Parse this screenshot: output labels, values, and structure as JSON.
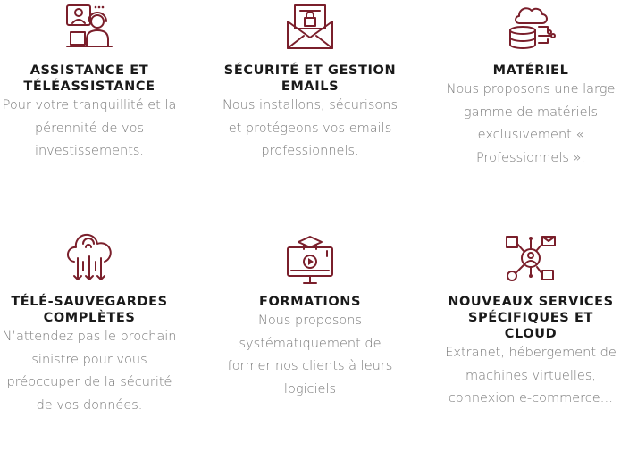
{
  "services": [
    {
      "title": "ASSISTANCE ET TÉLÉASSISTANCE",
      "description": "Pour votre tranquillité et la pérennité de vos investissements.",
      "icon": "support-agent-icon"
    },
    {
      "title": "SÉCURITÉ ET GESTION EMAILS",
      "description": "Nous installons, sécurisons et protégeons vos emails professionnels.",
      "icon": "secure-email-icon"
    },
    {
      "title": "MATÉRIEL",
      "description": "Nous proposons une large gamme de matériels exclusivement « Professionnels ».",
      "icon": "database-cloud-icon"
    },
    {
      "title": "TÉLÉ-SAUVEGARDES COMPLÈTES",
      "description": "N’attendez pas le prochain sinistre pour vous préoccuper de la sécurité de vos données.",
      "icon": "cloud-backup-icon"
    },
    {
      "title": "FORMATIONS",
      "description": "Nous proposons systématiquement de former nos clients à leurs logiciels",
      "icon": "training-monitor-icon"
    },
    {
      "title": "NOUVEAUX SERVICES SPÉCIFIQUES ET CLOUD",
      "description": "Extranet, hébergement de machines virtuelles, connexion e-commerce…",
      "icon": "network-services-icon"
    }
  ],
  "colors": {
    "accent": "#7a1f2b",
    "title": "#1a1a1a",
    "text": "#7a7a7a"
  }
}
